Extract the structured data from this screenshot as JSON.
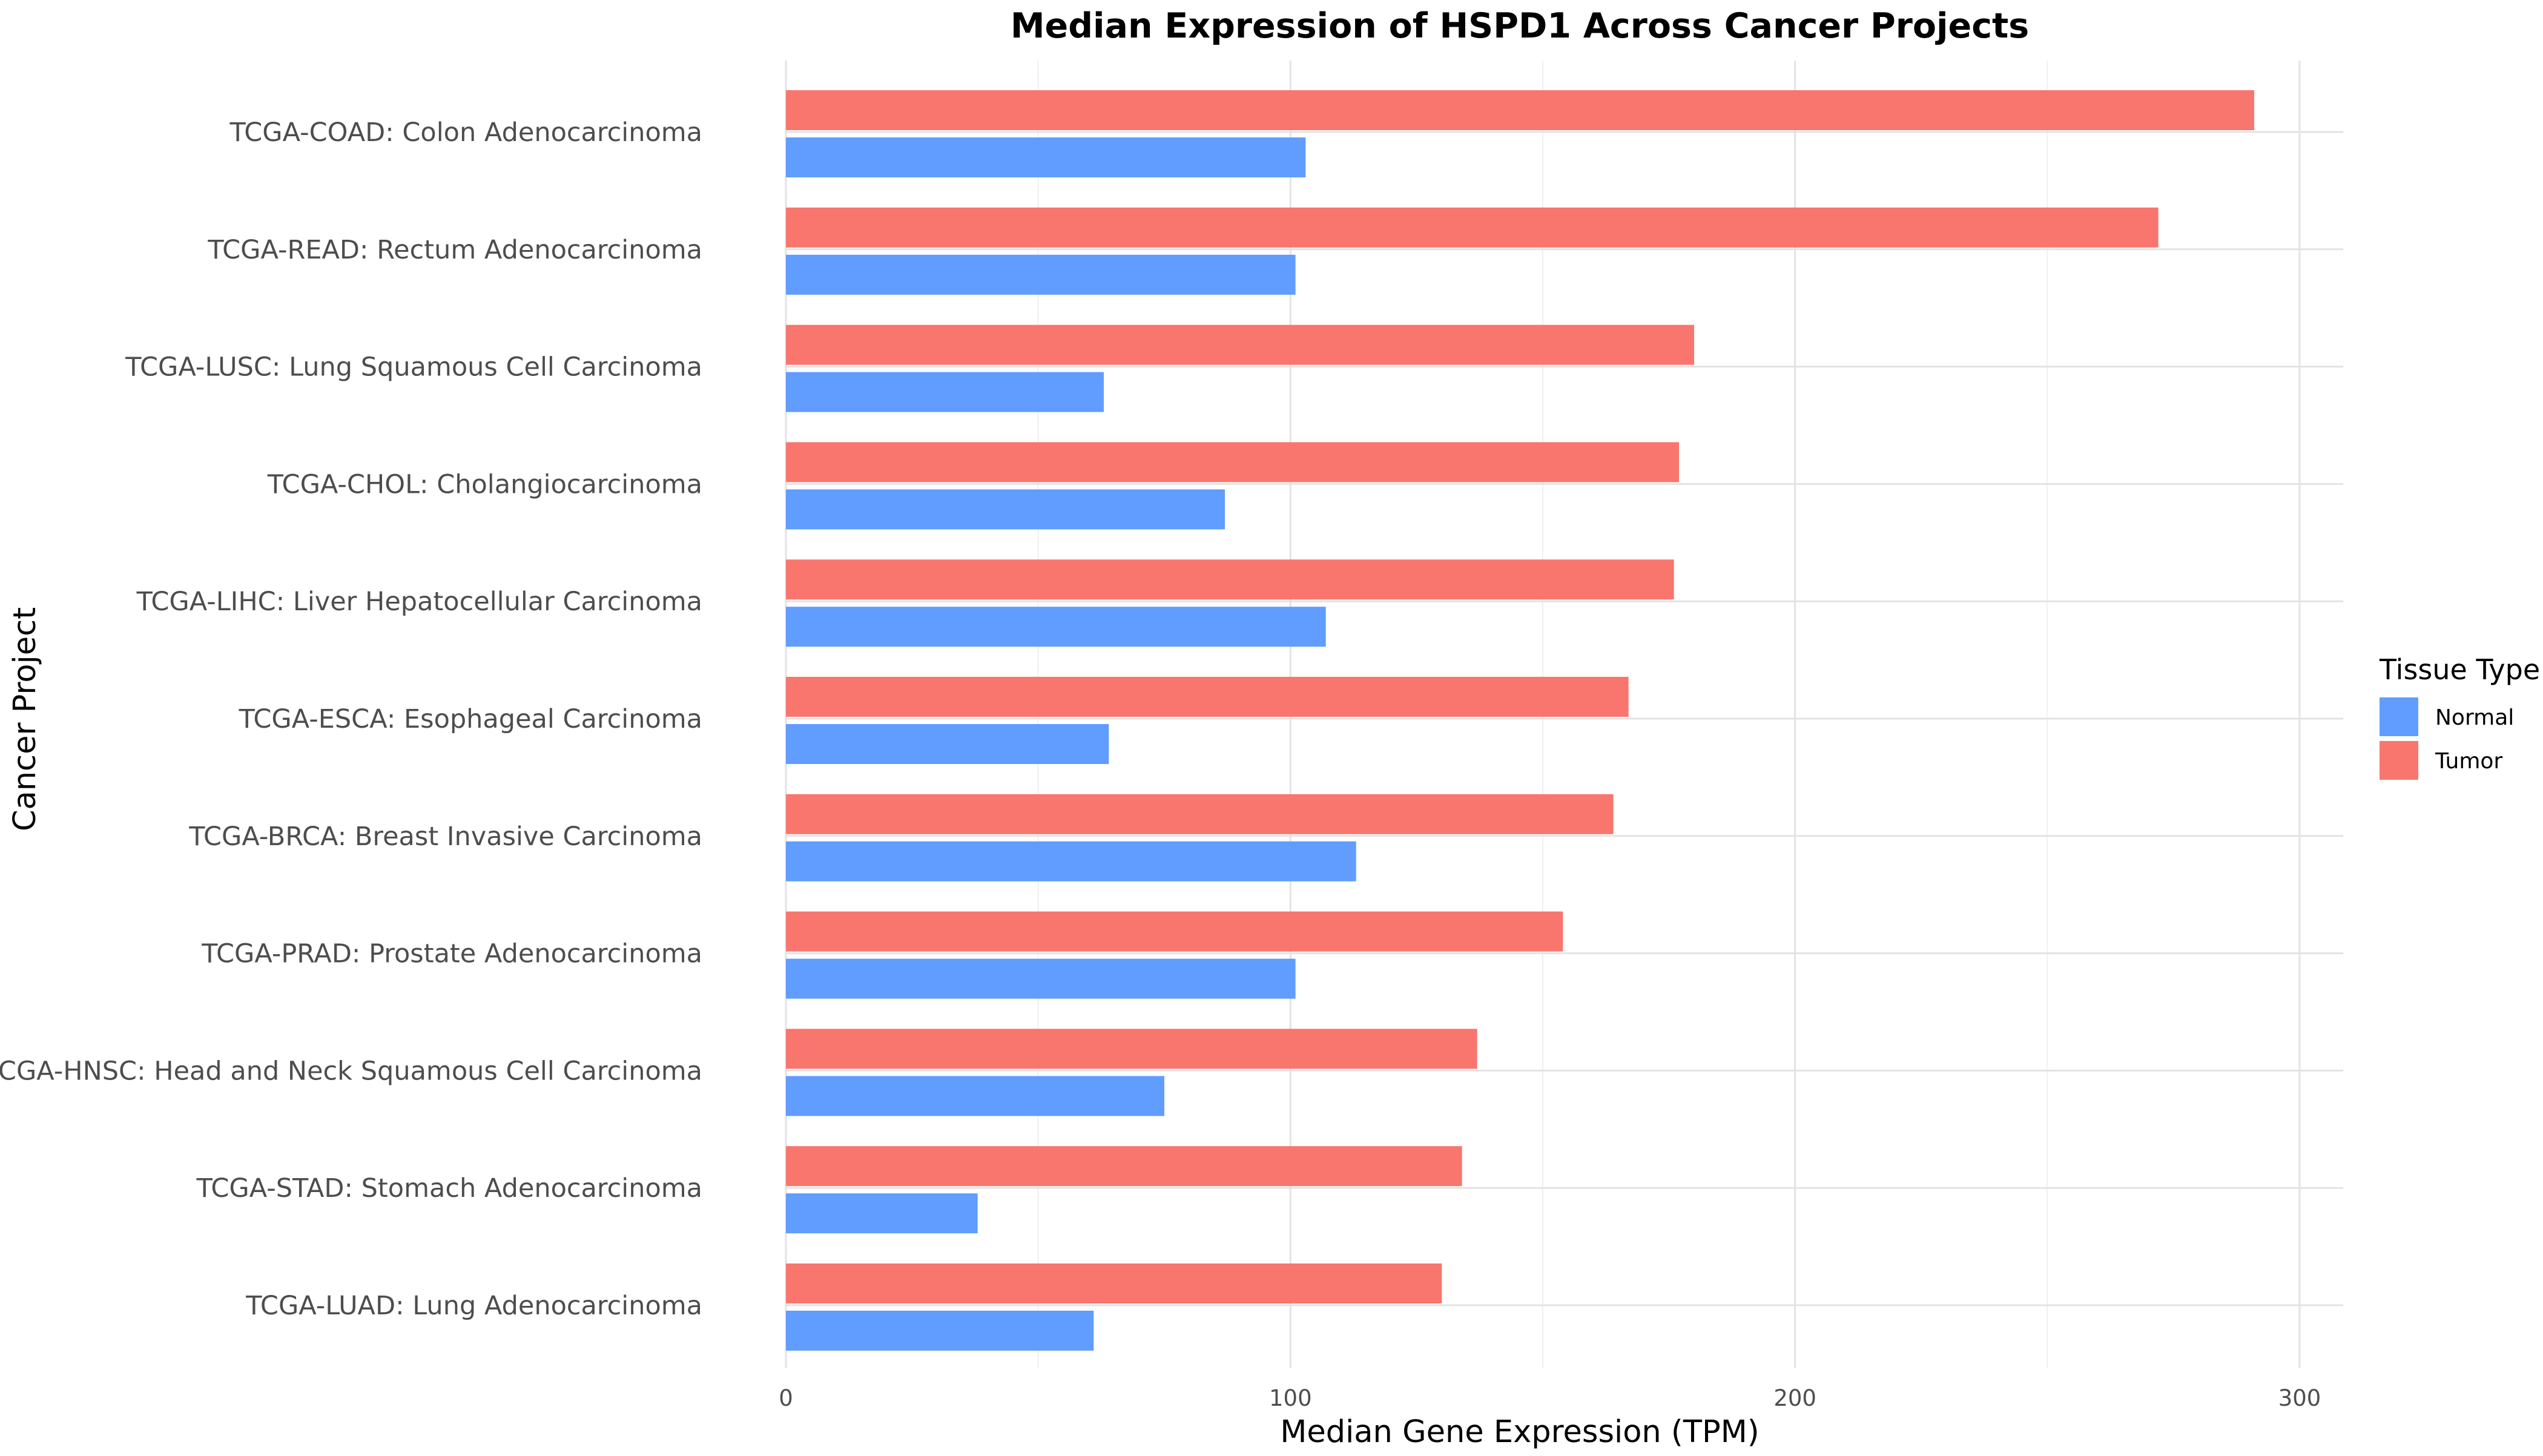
{
  "chart_data": {
    "type": "bar",
    "orientation": "horizontal",
    "title": "Median Expression of HSPD1 Across Cancer Projects",
    "xlabel": "Median Gene Expression (TPM)",
    "ylabel": "Cancer Project",
    "xlim": [
      0,
      325
    ],
    "xticks": [
      0,
      100,
      200,
      300
    ],
    "grid": true,
    "legend_position": "right",
    "legend_title": "Tissue Type",
    "categories": [
      "TCGA-COAD: Colon Adenocarcinoma",
      "TCGA-READ: Rectum Adenocarcinoma",
      "TCGA-LUSC: Lung Squamous Cell Carcinoma",
      "TCGA-CHOL: Cholangiocarcinoma",
      "TCGA-LIHC: Liver Hepatocellular Carcinoma",
      "TCGA-ESCA: Esophageal Carcinoma",
      "TCGA-BRCA: Breast Invasive Carcinoma",
      "TCGA-PRAD: Prostate Adenocarcinoma",
      "TCGA-HNSC: Head and Neck Squamous Cell Carcinoma",
      "TCGA-STAD: Stomach Adenocarcinoma",
      "TCGA-LUAD: Lung Adenocarcinoma"
    ],
    "series": [
      {
        "name": "Tumor",
        "color": "#F8766D",
        "values": [
          291,
          272,
          180,
          177,
          176,
          167,
          164,
          154,
          137,
          134,
          130
        ]
      },
      {
        "name": "Normal",
        "color": "#619CFF",
        "values": [
          103,
          101,
          63,
          87,
          107,
          64,
          113,
          101,
          75,
          38,
          61
        ]
      }
    ],
    "legend_order": [
      "Normal",
      "Tumor"
    ]
  }
}
